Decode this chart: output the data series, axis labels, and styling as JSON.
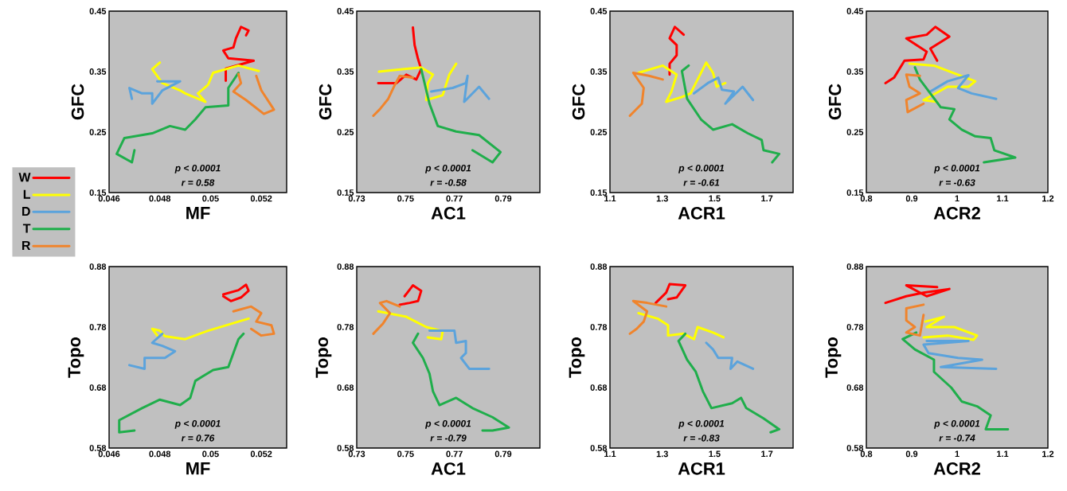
{
  "chart_data": [
    {
      "type": "line",
      "xlabel": "MF",
      "ylabel": "GFC",
      "xlim": [
        0.046,
        0.053
      ],
      "ylim": [
        0.15,
        0.45
      ],
      "xticks": [
        0.046,
        0.048,
        0.05,
        0.052
      ],
      "yticks": [
        0.15,
        0.25,
        0.35,
        0.45
      ],
      "legend": "left",
      "annotations": [
        "p < 0.0001",
        "r = 0.58"
      ],
      "series": [
        {
          "name": "W",
          "color": "#ff0000",
          "x": [
            0.0506,
            0.0506,
            0.0517,
            0.0507,
            0.0505,
            0.0509,
            0.051,
            0.0512,
            0.0515,
            0.0514
          ],
          "values": [
            0.335,
            0.355,
            0.368,
            0.372,
            0.385,
            0.39,
            0.405,
            0.424,
            0.418,
            0.41
          ]
        },
        {
          "name": "L",
          "color": "#ffff00",
          "x": [
            0.0519,
            0.0511,
            0.0501,
            0.0499,
            0.0495,
            0.0498,
            0.049,
            0.0488,
            0.0481,
            0.0477,
            0.048
          ],
          "values": [
            0.351,
            0.36,
            0.348,
            0.328,
            0.314,
            0.3,
            0.314,
            0.319,
            0.331,
            0.354,
            0.365
          ]
        },
        {
          "name": "D",
          "color": "#5ba3dc",
          "x": [
            0.0479,
            0.0488,
            0.0481,
            0.0477,
            0.0477,
            0.0473,
            0.0468,
            0.0469
          ],
          "values": [
            0.334,
            0.334,
            0.319,
            0.297,
            0.314,
            0.314,
            0.323,
            0.305
          ]
        },
        {
          "name": "T",
          "color": "#1fae4b",
          "x": [
            0.047,
            0.0469,
            0.0463,
            0.0466,
            0.0477,
            0.0484,
            0.049,
            0.0494,
            0.0498,
            0.0507,
            0.0507,
            0.0511
          ],
          "values": [
            0.22,
            0.2,
            0.214,
            0.24,
            0.248,
            0.26,
            0.254,
            0.271,
            0.291,
            0.294,
            0.323,
            0.348
          ]
        },
        {
          "name": "R",
          "color": "#f0842c",
          "x": [
            0.0511,
            0.0512,
            0.0509,
            0.0514,
            0.0521,
            0.0525,
            0.052,
            0.0518
          ],
          "values": [
            0.346,
            0.331,
            0.317,
            0.303,
            0.28,
            0.287,
            0.319,
            0.343
          ]
        }
      ]
    },
    {
      "type": "line",
      "xlabel": "AC1",
      "ylabel": "GFC",
      "xlim": [
        0.73,
        0.805
      ],
      "ylim": [
        0.15,
        0.45
      ],
      "xticks": [
        0.73,
        0.75,
        0.77,
        0.79
      ],
      "yticks": [
        0.15,
        0.25,
        0.35,
        0.45
      ],
      "annotations": [
        "p < 0.0001",
        "r = -0.58"
      ],
      "series": [
        {
          "color": "#ff0000",
          "x": [
            0.753,
            0.7537,
            0.7551,
            0.7564,
            0.7544,
            0.7503,
            0.7463,
            0.7388
          ],
          "values": [
            0.423,
            0.394,
            0.371,
            0.354,
            0.337,
            0.345,
            0.331,
            0.331
          ]
        },
        {
          "color": "#ffff00",
          "x": [
            0.7391,
            0.7564,
            0.7612,
            0.7591,
            0.7585,
            0.7652,
            0.7679,
            0.7707
          ],
          "values": [
            0.35,
            0.357,
            0.345,
            0.331,
            0.303,
            0.311,
            0.345,
            0.363
          ]
        },
        {
          "color": "#5ba3dc",
          "x": [
            0.7605,
            0.7693,
            0.7747,
            0.7754,
            0.774,
            0.7801,
            0.7842
          ],
          "values": [
            0.317,
            0.323,
            0.331,
            0.343,
            0.3,
            0.325,
            0.305
          ]
        },
        {
          "color": "#1fae4b",
          "x": [
            0.7564,
            0.7598,
            0.7632,
            0.7707,
            0.7801,
            0.7889,
            0.7856,
            0.7774
          ],
          "values": [
            0.354,
            0.297,
            0.26,
            0.251,
            0.245,
            0.217,
            0.2,
            0.22
          ]
        },
        {
          "color": "#f0842c",
          "x": [
            0.753,
            0.7476,
            0.7456,
            0.7429,
            0.7395,
            0.7368
          ],
          "values": [
            0.34,
            0.343,
            0.328,
            0.305,
            0.288,
            0.277
          ]
        }
      ]
    },
    {
      "type": "line",
      "xlabel": "ACR1",
      "ylabel": "GFC",
      "xlim": [
        1.1,
        1.8
      ],
      "ylim": [
        0.15,
        0.45
      ],
      "xticks": [
        1.1,
        1.3,
        1.5,
        1.7
      ],
      "yticks": [
        0.15,
        0.25,
        0.35,
        0.45
      ],
      "annotations": [
        "p < 0.0001",
        "r = -0.61"
      ],
      "series": [
        {
          "color": "#ff0000",
          "x": [
            1.328,
            1.328,
            1.355,
            1.355,
            1.328,
            1.348,
            1.382
          ],
          "values": [
            0.345,
            0.363,
            0.377,
            0.394,
            0.405,
            0.424,
            0.411
          ]
        },
        {
          "color": "#ffff00",
          "x": [
            1.209,
            1.302,
            1.355,
            1.335,
            1.315,
            1.375,
            1.408,
            1.468,
            1.494,
            1.508,
            1.541
          ],
          "values": [
            0.348,
            0.36,
            0.345,
            0.317,
            0.3,
            0.308,
            0.314,
            0.365,
            0.348,
            0.325,
            0.331
          ]
        },
        {
          "color": "#5ba3dc",
          "x": [
            1.421,
            1.474,
            1.514,
            1.528,
            1.574,
            1.541,
            1.607,
            1.647
          ],
          "values": [
            0.314,
            0.331,
            0.34,
            0.32,
            0.317,
            0.297,
            0.325,
            0.303
          ]
        },
        {
          "color": "#1fae4b",
          "x": [
            1.401,
            1.375,
            1.395,
            1.448,
            1.494,
            1.567,
            1.627,
            1.68,
            1.687,
            1.747,
            1.72
          ],
          "values": [
            0.36,
            0.351,
            0.305,
            0.271,
            0.254,
            0.263,
            0.248,
            0.237,
            0.22,
            0.214,
            0.2
          ]
        },
        {
          "color": "#f0842c",
          "x": [
            1.302,
            1.249,
            1.189,
            1.229,
            1.222,
            1.176
          ],
          "values": [
            0.337,
            0.343,
            0.348,
            0.323,
            0.297,
            0.277
          ]
        }
      ]
    },
    {
      "type": "line",
      "xlabel": "ACR2",
      "ylabel": "GFC",
      "xlim": [
        0.8,
        1.2
      ],
      "ylim": [
        0.15,
        0.45
      ],
      "xticks": [
        0.8,
        0.9,
        1,
        1.1,
        1.2
      ],
      "yticks": [
        0.15,
        0.25,
        0.35,
        0.45
      ],
      "annotations": [
        "p < 0.0001",
        "r = -0.63"
      ],
      "series": [
        {
          "color": "#ff0000",
          "x": [
            0.842,
            0.861,
            0.884,
            0.926,
            0.933,
            0.888,
            0.933,
            0.952,
            0.983,
            0.941,
            0.956
          ],
          "values": [
            0.331,
            0.34,
            0.368,
            0.37,
            0.383,
            0.405,
            0.411,
            0.424,
            0.408,
            0.388,
            0.368
          ]
        },
        {
          "color": "#ffff00",
          "x": [
            0.895,
            0.949,
            1.04,
            1.025,
            0.979,
            0.926,
            0.956
          ],
          "values": [
            0.363,
            0.36,
            0.334,
            0.325,
            0.325,
            0.303,
            0.3
          ]
        },
        {
          "color": "#5ba3dc",
          "x": [
            0.941,
            0.979,
            1.025,
            1.002,
            1.032,
            1.086
          ],
          "values": [
            0.317,
            0.334,
            0.344,
            0.323,
            0.314,
            0.305
          ]
        },
        {
          "color": "#1fae4b",
          "x": [
            0.907,
            0.918,
            0.964,
            0.994,
            0.983,
            1.01,
            1.04,
            1.074,
            1.082,
            1.128,
            1.059
          ],
          "values": [
            0.357,
            0.337,
            0.291,
            0.288,
            0.271,
            0.254,
            0.243,
            0.24,
            0.22,
            0.208,
            0.2
          ]
        },
        {
          "color": "#f0842c",
          "x": [
            0.918,
            0.888,
            0.895,
            0.918,
            0.888,
            0.891,
            0.926
          ],
          "values": [
            0.343,
            0.345,
            0.325,
            0.314,
            0.303,
            0.283,
            0.297
          ]
        }
      ]
    },
    {
      "type": "line",
      "xlabel": "MF",
      "ylabel": "Topo",
      "xlim": [
        0.046,
        0.053
      ],
      "ylim": [
        0.58,
        0.88
      ],
      "xticks": [
        0.046,
        0.048,
        0.05,
        0.052
      ],
      "yticks": [
        0.58,
        0.68,
        0.78,
        0.88
      ],
      "annotations": [
        "p < 0.0001",
        "r = 0.76"
      ],
      "series": [
        {
          "color": "#ff0000",
          "x": [
            0.0505,
            0.0511,
            0.0514,
            0.0515,
            0.0512,
            0.0508,
            0.0505
          ],
          "values": [
            0.834,
            0.841,
            0.85,
            0.84,
            0.829,
            0.823,
            0.831
          ]
        },
        {
          "color": "#ffff00",
          "x": [
            0.0515,
            0.0511,
            0.0499,
            0.049,
            0.0482,
            0.048,
            0.0477,
            0.0479
          ],
          "values": [
            0.794,
            0.789,
            0.774,
            0.76,
            0.765,
            0.774,
            0.777,
            0.766
          ]
        },
        {
          "color": "#5ba3dc",
          "x": [
            0.0481,
            0.0477,
            0.0481,
            0.0486,
            0.0482,
            0.0474,
            0.0474,
            0.0468
          ],
          "values": [
            0.769,
            0.754,
            0.749,
            0.74,
            0.729,
            0.729,
            0.711,
            0.717
          ]
        },
        {
          "color": "#1fae4b",
          "x": [
            0.047,
            0.0464,
            0.0464,
            0.0473,
            0.048,
            0.0488,
            0.0492,
            0.0494,
            0.0501,
            0.0507,
            0.0509,
            0.0511,
            0.0513
          ],
          "values": [
            0.609,
            0.606,
            0.626,
            0.646,
            0.66,
            0.651,
            0.663,
            0.691,
            0.709,
            0.714,
            0.737,
            0.76,
            0.769
          ]
        },
        {
          "color": "#f0842c",
          "x": [
            0.0509,
            0.0516,
            0.052,
            0.0518,
            0.0524,
            0.0525,
            0.052,
            0.0516
          ],
          "values": [
            0.806,
            0.814,
            0.803,
            0.789,
            0.783,
            0.769,
            0.766,
            0.777
          ]
        }
      ]
    },
    {
      "type": "line",
      "xlabel": "AC1",
      "ylabel": "Topo",
      "xlim": [
        0.73,
        0.805
      ],
      "ylim": [
        0.58,
        0.88
      ],
      "xticks": [
        0.73,
        0.75,
        0.77,
        0.79
      ],
      "yticks": [
        0.58,
        0.68,
        0.78,
        0.88
      ],
      "annotations": [
        "p < 0.0001",
        "r = -0.79"
      ],
      "series": [
        {
          "color": "#ff0000",
          "x": [
            0.7496,
            0.753,
            0.7564,
            0.7551,
            0.7517,
            0.7476
          ],
          "values": [
            0.831,
            0.849,
            0.84,
            0.823,
            0.82,
            0.817
          ]
        },
        {
          "color": "#ffff00",
          "x": [
            0.7388,
            0.7503,
            0.7585,
            0.7652,
            0.7646,
            0.7591
          ],
          "values": [
            0.806,
            0.797,
            0.78,
            0.773,
            0.76,
            0.763
          ]
        },
        {
          "color": "#5ba3dc",
          "x": [
            0.7598,
            0.77,
            0.7707,
            0.7747,
            0.7747,
            0.7727,
            0.7761,
            0.7842
          ],
          "values": [
            0.774,
            0.774,
            0.754,
            0.757,
            0.737,
            0.729,
            0.711,
            0.711
          ]
        },
        {
          "color": "#1fae4b",
          "x": [
            0.7551,
            0.753,
            0.7571,
            0.7598,
            0.7612,
            0.7639,
            0.7707,
            0.7774,
            0.7856,
            0.7923,
            0.7856,
            0.7815
          ],
          "values": [
            0.769,
            0.754,
            0.729,
            0.703,
            0.674,
            0.651,
            0.663,
            0.646,
            0.631,
            0.614,
            0.609,
            0.609
          ]
        },
        {
          "color": "#f0842c",
          "x": [
            0.7476,
            0.7422,
            0.7395,
            0.7436,
            0.7408,
            0.7368
          ],
          "values": [
            0.814,
            0.823,
            0.82,
            0.803,
            0.786,
            0.769
          ]
        }
      ]
    },
    {
      "type": "line",
      "xlabel": "ACR1",
      "ylabel": "Topo",
      "xlim": [
        1.1,
        1.8
      ],
      "ylim": [
        0.58,
        0.88
      ],
      "xticks": [
        1.1,
        1.3,
        1.5,
        1.7
      ],
      "yticks": [
        0.58,
        0.68,
        0.78,
        0.88
      ],
      "annotations": [
        "p < 0.0001",
        "r = -0.83"
      ],
      "series": [
        {
          "color": "#ff0000",
          "x": [
            1.275,
            1.315,
            1.328,
            1.388,
            1.355,
            1.322
          ],
          "values": [
            0.82,
            0.837,
            0.851,
            0.849,
            0.829,
            0.826
          ]
        },
        {
          "color": "#ffff00",
          "x": [
            1.209,
            1.282,
            1.322,
            1.322,
            1.382,
            1.421,
            1.435,
            1.494,
            1.534
          ],
          "values": [
            0.803,
            0.794,
            0.783,
            0.766,
            0.769,
            0.76,
            0.78,
            0.771,
            0.763
          ]
        },
        {
          "color": "#5ba3dc",
          "x": [
            1.468,
            1.494,
            1.514,
            1.567,
            1.561,
            1.587,
            1.647
          ],
          "values": [
            0.754,
            0.743,
            0.729,
            0.729,
            0.711,
            0.723,
            0.711
          ]
        },
        {
          "color": "#1fae4b",
          "x": [
            1.388,
            1.362,
            1.395,
            1.428,
            1.455,
            1.488,
            1.567,
            1.601,
            1.621,
            1.687,
            1.747,
            1.714
          ],
          "values": [
            0.769,
            0.757,
            0.726,
            0.706,
            0.674,
            0.646,
            0.654,
            0.663,
            0.646,
            0.629,
            0.611,
            0.606
          ]
        },
        {
          "color": "#f0842c",
          "x": [
            1.315,
            1.242,
            1.189,
            1.242,
            1.229,
            1.202,
            1.176
          ],
          "values": [
            0.814,
            0.82,
            0.823,
            0.806,
            0.789,
            0.777,
            0.769
          ]
        }
      ]
    },
    {
      "type": "line",
      "xlabel": "ACR2",
      "ylabel": "Topo",
      "xlim": [
        0.8,
        1.2
      ],
      "ylim": [
        0.58,
        0.88
      ],
      "xticks": [
        0.8,
        0.9,
        1,
        1.1,
        1.2
      ],
      "yticks": [
        0.58,
        0.68,
        0.78,
        0.88
      ],
      "annotations": [
        "p < 0.0001",
        "r = -0.74"
      ],
      "series": [
        {
          "color": "#ff0000",
          "x": [
            0.842,
            0.888,
            0.926,
            0.983,
            0.933,
            0.888,
            0.956
          ],
          "values": [
            0.82,
            0.831,
            0.837,
            0.843,
            0.831,
            0.849,
            0.846
          ]
        },
        {
          "color": "#ffff00",
          "x": [
            0.93,
            0.971,
            0.933,
            0.994,
            1.044,
            1.036,
            0.979,
            0.926
          ],
          "values": [
            0.789,
            0.797,
            0.78,
            0.78,
            0.766,
            0.759,
            0.766,
            0.763
          ]
        },
        {
          "color": "#5ba3dc",
          "x": [
            0.933,
            1.025,
            0.926,
            0.937,
            1.002,
            1.055,
            0.964,
            1.086
          ],
          "values": [
            0.757,
            0.757,
            0.751,
            0.737,
            0.729,
            0.726,
            0.714,
            0.711
          ]
        },
        {
          "color": "#1fae4b",
          "x": [
            0.91,
            0.88,
            0.907,
            0.949,
            0.949,
            0.987,
            1.01,
            1.044,
            1.074,
            1.063,
            1.112
          ],
          "values": [
            0.771,
            0.76,
            0.743,
            0.726,
            0.706,
            0.68,
            0.657,
            0.649,
            0.634,
            0.611,
            0.611
          ]
        },
        {
          "color": "#f0842c",
          "x": [
            0.926,
            0.888,
            0.888,
            0.907,
            0.888,
            0.918,
            0.926
          ],
          "values": [
            0.817,
            0.811,
            0.791,
            0.78,
            0.771,
            0.766,
            0.8
          ]
        }
      ]
    }
  ]
}
